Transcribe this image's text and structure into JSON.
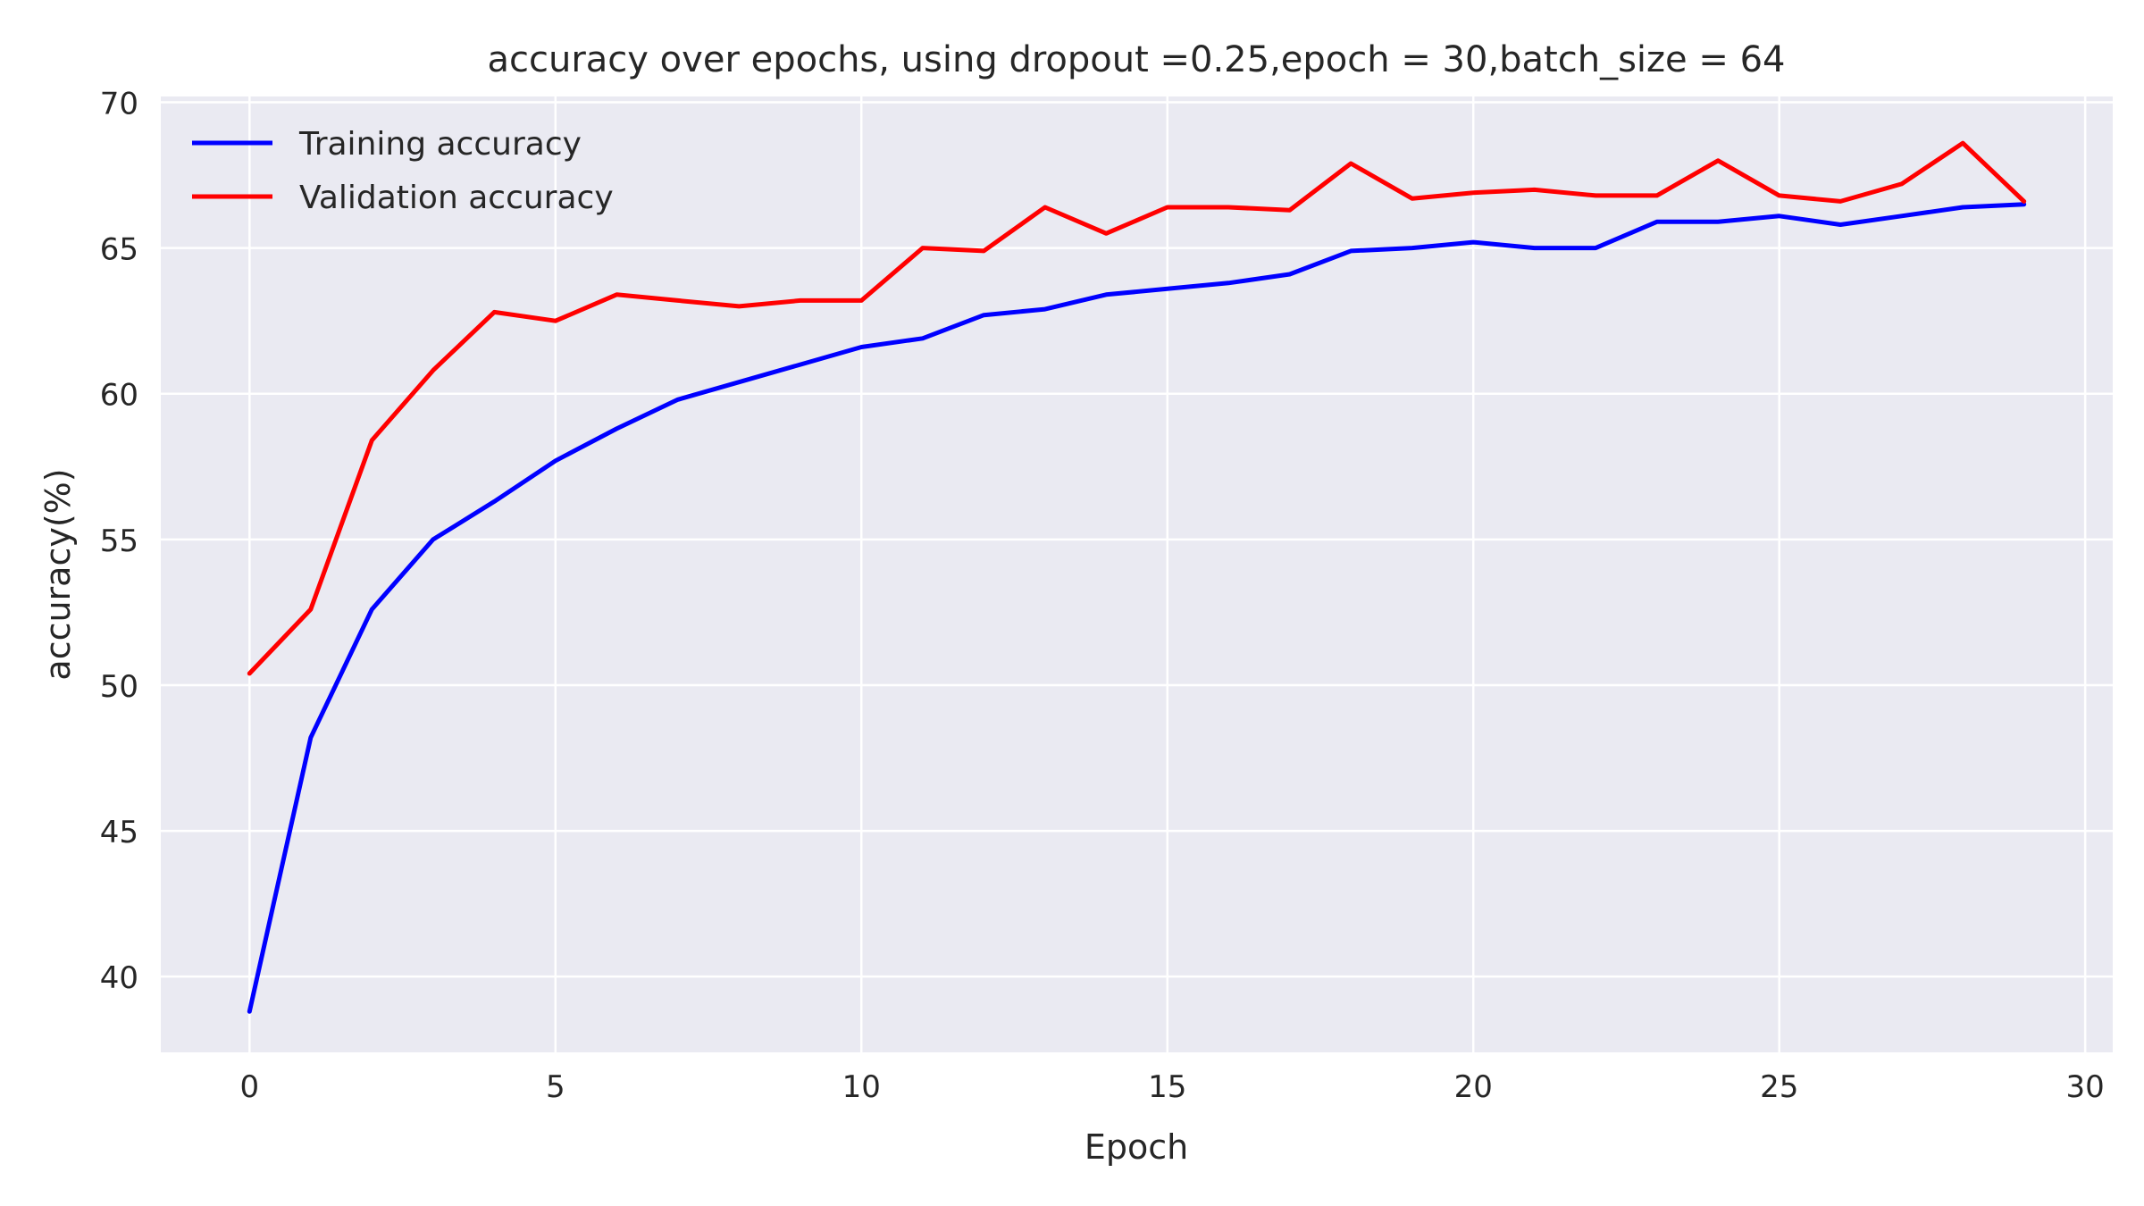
{
  "chart_data": {
    "type": "line",
    "title": "accuracy over epochs, using dropout =0.25,epoch = 30,batch_size = 64",
    "xlabel": "Epoch",
    "ylabel": "accuracy(%)",
    "xlim": [
      -1.45,
      30.45
    ],
    "ylim": [
      37.4,
      70.2
    ],
    "xticks": [
      0,
      5,
      10,
      15,
      20,
      25,
      30
    ],
    "yticks": [
      40,
      45,
      50,
      55,
      60,
      65,
      70
    ],
    "grid": true,
    "legend_position": "top-left",
    "x": [
      0,
      1,
      2,
      3,
      4,
      5,
      6,
      7,
      8,
      9,
      10,
      11,
      12,
      13,
      14,
      15,
      16,
      17,
      18,
      19,
      20,
      21,
      22,
      23,
      24,
      25,
      26,
      27,
      28,
      29
    ],
    "series": [
      {
        "name": "Training accuracy",
        "color": "#0000ff",
        "values": [
          38.8,
          48.2,
          52.6,
          55.0,
          56.3,
          57.7,
          58.8,
          59.8,
          60.4,
          61.0,
          61.6,
          61.9,
          62.7,
          62.9,
          63.4,
          63.6,
          63.8,
          64.1,
          64.9,
          65.0,
          65.2,
          65.0,
          65.0,
          65.9,
          65.9,
          66.1,
          65.8,
          66.1,
          66.4,
          66.5
        ]
      },
      {
        "name": "Validation accuracy",
        "color": "#ff0000",
        "values": [
          50.4,
          52.6,
          58.4,
          60.8,
          62.8,
          62.5,
          63.4,
          63.2,
          63.0,
          63.2,
          63.2,
          65.0,
          64.9,
          66.4,
          65.5,
          66.4,
          66.4,
          66.3,
          67.9,
          66.7,
          66.9,
          67.0,
          66.8,
          66.8,
          68.0,
          66.8,
          66.6,
          67.2,
          68.6,
          66.6
        ]
      }
    ],
    "colors": {
      "background": "#ffffff",
      "plot_area": "#eaeaf2",
      "grid": "#ffffff",
      "text": "#262626"
    }
  }
}
